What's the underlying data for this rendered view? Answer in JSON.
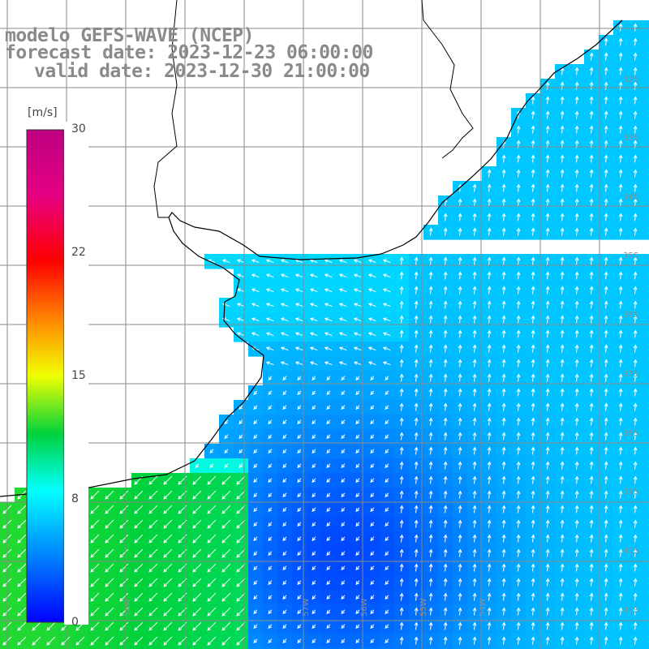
{
  "title": {
    "line1": "modelo GEFS-WAVE (NCEP)",
    "line2": "forecast date: 2023-12-23 06:00:00",
    "line3": "valid date: 2023-12-30 21:00:00"
  },
  "legend": {
    "unit": "[m/s]",
    "ticks": [
      {
        "label": "30",
        "value": 30
      },
      {
        "label": "22",
        "value": 22
      },
      {
        "label": "15",
        "value": 15
      },
      {
        "label": "8",
        "value": 8
      },
      {
        "label": "0",
        "value": 0
      }
    ],
    "range": [
      0,
      30
    ]
  },
  "map": {
    "lat_labels": [
      "32S",
      "33S",
      "34S",
      "35S",
      "36S",
      "37S",
      "38S",
      "39S",
      "40S",
      "41S"
    ],
    "lon_labels": [
      "58W",
      "57W",
      "56W",
      "55W",
      "54W"
    ],
    "colors": {
      "land": "#ffffff",
      "grid": "#888888",
      "coast": "#000000",
      "arrow": "#ffffff"
    }
  }
}
